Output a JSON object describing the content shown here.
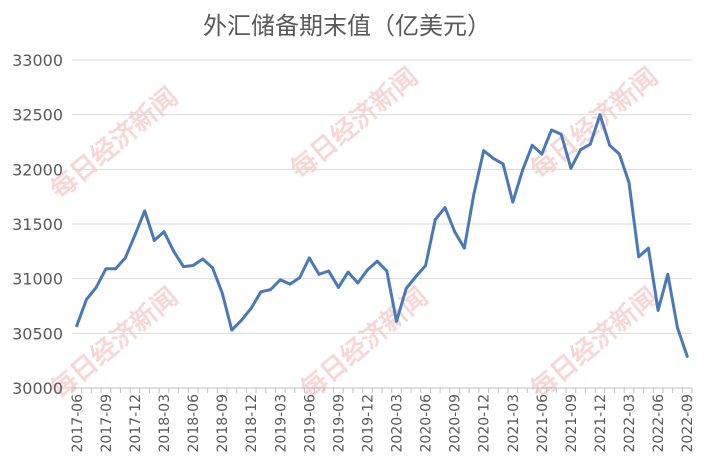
{
  "chart_data": {
    "type": "line",
    "title": "外汇储备期末值（亿美元）",
    "xlabel": "",
    "ylabel": "",
    "ylim": [
      30000,
      33000
    ],
    "yticks": [
      30000,
      30500,
      31000,
      31500,
      32000,
      32500,
      33000
    ],
    "grid": true,
    "legend": "none",
    "x": [
      "2017-06",
      "2017-07",
      "2017-08",
      "2017-09",
      "2017-10",
      "2017-11",
      "2017-12",
      "2018-01",
      "2018-02",
      "2018-03",
      "2018-04",
      "2018-05",
      "2018-06",
      "2018-07",
      "2018-08",
      "2018-09",
      "2018-10",
      "2018-11",
      "2018-12",
      "2019-01",
      "2019-02",
      "2019-03",
      "2019-04",
      "2019-05",
      "2019-06",
      "2019-07",
      "2019-08",
      "2019-09",
      "2019-10",
      "2019-11",
      "2019-12",
      "2020-01",
      "2020-02",
      "2020-03",
      "2020-04",
      "2020-05",
      "2020-06",
      "2020-07",
      "2020-08",
      "2020-09",
      "2020-10",
      "2020-11",
      "2020-12",
      "2021-01",
      "2021-02",
      "2021-03",
      "2021-04",
      "2021-05",
      "2021-06",
      "2021-07",
      "2021-08",
      "2021-09",
      "2021-10",
      "2021-11",
      "2021-12",
      "2022-01",
      "2022-02",
      "2022-03",
      "2022-04",
      "2022-05",
      "2022-06",
      "2022-07",
      "2022-08",
      "2022-09"
    ],
    "x_tick_labels": [
      "2017-06",
      "2017-09",
      "2017-12",
      "2018-03",
      "2018-06",
      "2018-09",
      "2018-12",
      "2019-03",
      "2019-06",
      "2019-09",
      "2019-12",
      "2020-03",
      "2020-06",
      "2020-09",
      "2020-12",
      "2021-03",
      "2021-06",
      "2021-09",
      "2021-12",
      "2022-03",
      "2022-06",
      "2022-09"
    ],
    "series": [
      {
        "name": "",
        "color": "#4a78b8",
        "values": [
          30570,
          30810,
          30920,
          31090,
          31090,
          31190,
          31400,
          31620,
          31350,
          31430,
          31250,
          31110,
          31120,
          31180,
          31100,
          30870,
          30530,
          30620,
          30730,
          30880,
          30900,
          30990,
          30950,
          31010,
          31190,
          31040,
          31070,
          30920,
          31060,
          30960,
          31080,
          31160,
          31070,
          30610,
          30910,
          31020,
          31120,
          31540,
          31650,
          31430,
          31280,
          31780,
          32170,
          32100,
          32050,
          31700,
          31990,
          32220,
          32140,
          32360,
          32320,
          32010,
          32180,
          32230,
          32500,
          32220,
          32140,
          31880,
          31200,
          31280,
          30710,
          31040,
          30550,
          30290
        ]
      }
    ]
  },
  "watermark": {
    "text": "每日经济新闻"
  }
}
